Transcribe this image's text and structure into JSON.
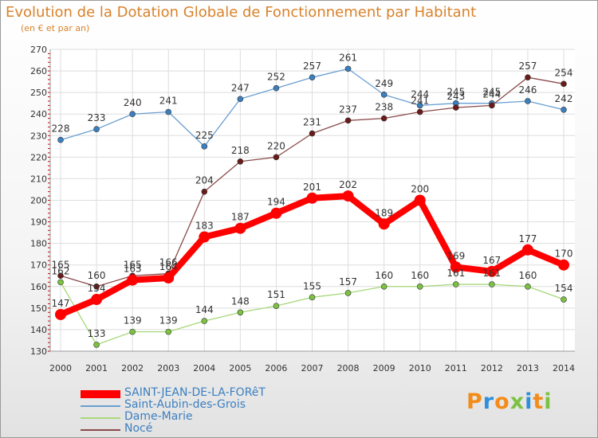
{
  "chart_data": {
    "type": "line",
    "title": "Evolution de la Dotation Globale de Fonctionnement par Habitant",
    "subtitle": "(en € et par an)",
    "xlabel": "",
    "ylabel": "",
    "categories": [
      "2000",
      "2001",
      "2002",
      "2003",
      "2004",
      "2005",
      "2006",
      "2007",
      "2008",
      "2009",
      "2010",
      "2011",
      "2012",
      "2013",
      "2014"
    ],
    "ylim": [
      130,
      270
    ],
    "yticks": [
      130,
      140,
      150,
      160,
      170,
      180,
      190,
      200,
      210,
      220,
      230,
      240,
      250,
      260,
      270
    ],
    "grid": true,
    "legend_position": "bottom-left",
    "series": [
      {
        "name": "SAINT-JEAN-DE-LA-FORêT",
        "color": "#ff0000",
        "emphasis": "thick",
        "values": [
          147,
          154,
          163,
          164,
          183,
          187,
          194,
          201,
          202,
          189,
          200,
          169,
          167,
          177,
          170
        ],
        "labels": [
          "147",
          "154",
          "163",
          "164",
          "183",
          "187",
          "194",
          "201",
          "202",
          "189",
          "200",
          "169",
          "167",
          "177",
          "170"
        ]
      },
      {
        "name": "Saint-Aubin-des-Grois",
        "color": "#6a9fd0",
        "emphasis": "thin",
        "values": [
          228,
          233,
          240,
          241,
          225,
          247,
          252,
          257,
          261,
          249,
          244,
          245,
          245,
          246,
          242
        ],
        "labels": [
          "228",
          "233",
          "240",
          "241",
          "225",
          "247",
          "252",
          "257",
          "261",
          "249",
          "244",
          "245",
          "245",
          "246",
          "242"
        ]
      },
      {
        "name": "Dame-Marie",
        "color": "#a8d87a",
        "emphasis": "thin",
        "values": [
          162,
          133,
          139,
          139,
          144,
          148,
          151,
          155,
          157,
          160,
          160,
          161,
          161,
          160,
          154
        ],
        "labels": [
          "162",
          "133",
          "139",
          "139",
          "144",
          "148",
          "151",
          "155",
          "157",
          "160",
          "160",
          "161",
          "161",
          "160",
          "154"
        ]
      },
      {
        "name": "Nocé",
        "color": "#8b4a4a",
        "emphasis": "thin",
        "values": [
          165,
          160,
          165,
          166,
          204,
          218,
          220,
          231,
          237,
          238,
          241,
          243,
          244,
          257,
          254
        ],
        "labels": [
          "165",
          "160",
          "165",
          "166",
          "204",
          "218",
          "220",
          "231",
          "237",
          "238",
          "241",
          "243",
          "244",
          "257",
          "254"
        ]
      }
    ]
  },
  "brand": {
    "logo_text": "Proxiti"
  }
}
